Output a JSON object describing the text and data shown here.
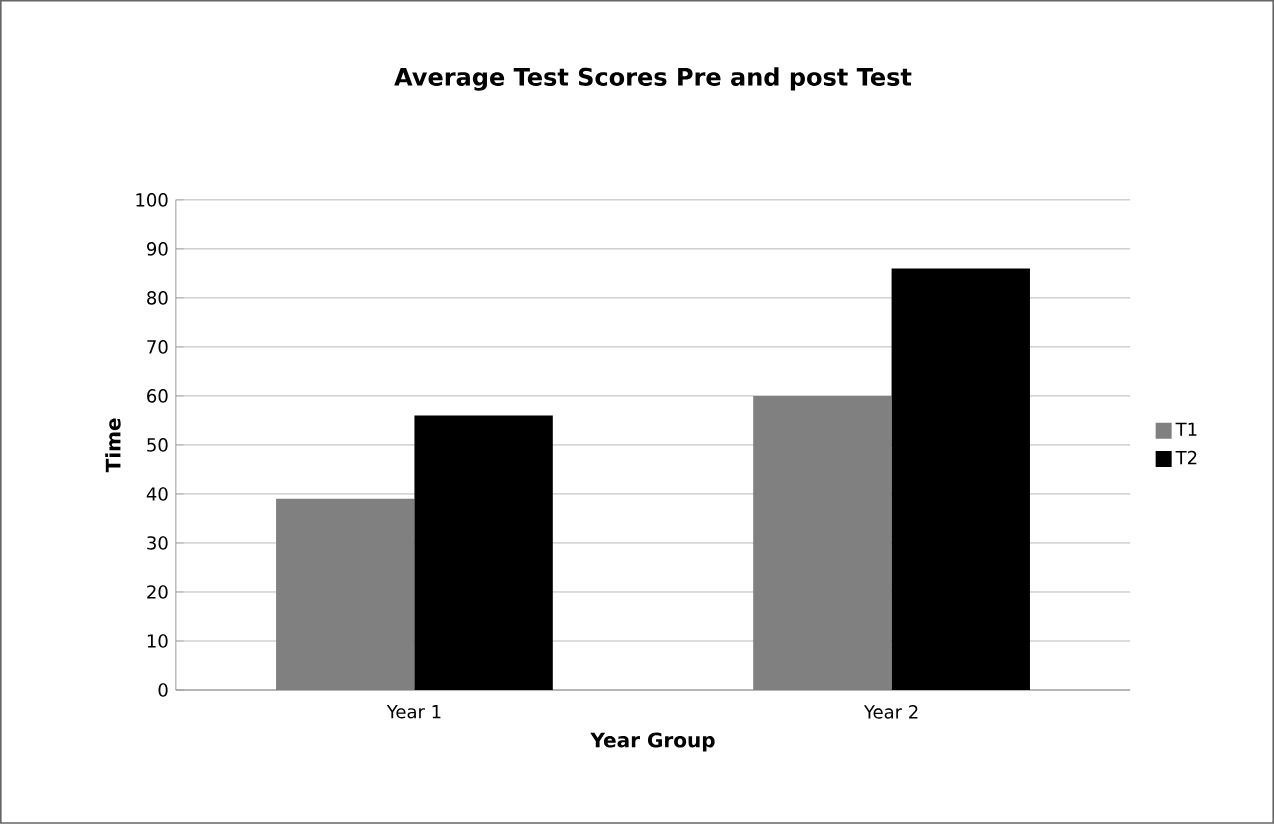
{
  "chart_data": {
    "type": "bar",
    "title": "Average Test Scores Pre and post Test",
    "xlabel": "Year Group",
    "ylabel": "Time",
    "categories": [
      "Year 1",
      "Year 2"
    ],
    "series": [
      {
        "name": "T1",
        "color": "#808080",
        "values": [
          39,
          60
        ]
      },
      {
        "name": "T2",
        "color": "#000000",
        "values": [
          56,
          86
        ]
      }
    ],
    "ylim": [
      0,
      100
    ],
    "yticks": [
      0,
      10,
      20,
      30,
      40,
      50,
      60,
      70,
      80,
      90,
      100
    ],
    "grid": "y",
    "legend": "right"
  }
}
